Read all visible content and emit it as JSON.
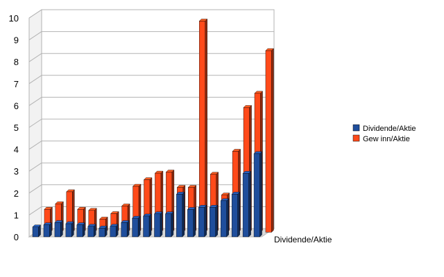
{
  "chart_data": {
    "type": "bar",
    "x_axis_label": "Dividende/Aktie",
    "ylim": [
      0,
      10
    ],
    "y_ticks": [
      0,
      1,
      2,
      3,
      4,
      5,
      6,
      7,
      8,
      9,
      10
    ],
    "grid": true,
    "legend_position": "right",
    "categories_count": 21,
    "series": [
      {
        "name": "Dividende/Aktie",
        "color": "#1f4e9c",
        "values": [
          0.45,
          0.55,
          0.65,
          0.6,
          0.55,
          0.48,
          0.4,
          0.48,
          0.65,
          0.85,
          0.95,
          1.05,
          1.05,
          1.95,
          1.25,
          1.35,
          1.35,
          1.65,
          1.95,
          2.9,
          3.8
        ]
      },
      {
        "name": "Gew inn/Aktie",
        "color": "#ff4a1a",
        "values": [
          1.05,
          1.3,
          1.85,
          1.05,
          1.0,
          0.6,
          0.85,
          1.2,
          2.1,
          2.4,
          2.7,
          2.75,
          2.05,
          2.05,
          9.65,
          2.65,
          1.7,
          3.7,
          5.7,
          6.35,
          8.3
        ]
      }
    ]
  }
}
